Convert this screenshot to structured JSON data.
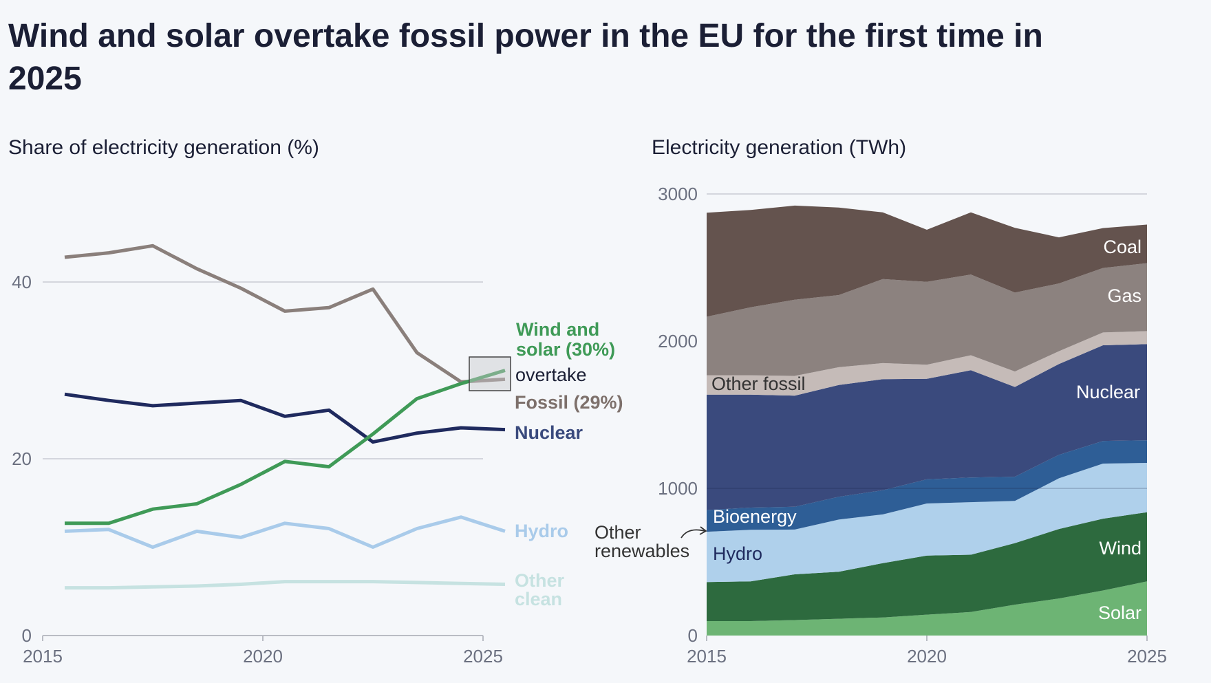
{
  "title_line1": "Wind and solar overtake fossil power in the EU for the first time in",
  "title_line2": "2025",
  "chart_data": [
    {
      "type": "line",
      "title": "Share of electricity generation (%)",
      "x": [
        2015,
        2016,
        2017,
        2018,
        2019,
        2020,
        2021,
        2022,
        2023,
        2024,
        2025
      ],
      "xticks": [
        "2015",
        "2020",
        "2025"
      ],
      "yticks": [
        "0",
        "20",
        "40"
      ],
      "ylim": [
        0,
        45
      ],
      "grid": true,
      "series": [
        {
          "name": "Fossil (29%)",
          "color": "#8a7f7b",
          "values": [
            42.8,
            43.3,
            44.1,
            41.5,
            39.3,
            36.7,
            37.1,
            39.2,
            32.0,
            28.7,
            29.0
          ]
        },
        {
          "name": "Wind and solar (30%)",
          "color": "#3f9a57",
          "values": [
            12.7,
            12.7,
            14.3,
            14.9,
            17.1,
            19.7,
            19.1,
            22.8,
            26.8,
            28.5,
            30.0
          ]
        },
        {
          "name": "Nuclear",
          "color": "#1f2a5e",
          "values": [
            27.3,
            26.6,
            26.0,
            26.3,
            26.6,
            24.8,
            25.5,
            21.9,
            22.9,
            23.5,
            23.3
          ]
        },
        {
          "name": "Hydro",
          "color": "#a9cbea",
          "values": [
            11.8,
            12.0,
            10.0,
            11.8,
            11.1,
            12.7,
            12.1,
            10.0,
            12.1,
            13.4,
            11.8
          ]
        },
        {
          "name": "Other clean",
          "color": "#c6e2e1",
          "values": [
            5.4,
            5.4,
            5.5,
            5.6,
            5.8,
            6.1,
            6.1,
            6.1,
            6.0,
            5.9,
            5.8
          ]
        }
      ],
      "labels": {
        "wind_line1": "Wind and",
        "wind_line2": "solar (30%)",
        "overtake": "overtake",
        "fossil": "Fossil (29%)",
        "nuclear": "Nuclear",
        "hydro": "Hydro",
        "other_line1": "Other",
        "other_line2": "clean"
      }
    },
    {
      "type": "area",
      "stacked": true,
      "title": "Electricity generation (TWh)",
      "x": [
        2015,
        2016,
        2017,
        2018,
        2019,
        2020,
        2021,
        2022,
        2023,
        2024,
        2025
      ],
      "xticks": [
        "2015",
        "2020",
        "2025"
      ],
      "yticks": [
        "0",
        "1000",
        "2000",
        "3000"
      ],
      "ylim": [
        0,
        3000
      ],
      "series": [
        {
          "name": "Solar",
          "color": "#6db474",
          "values": [
            98,
            98,
            105,
            114,
            123,
            142,
            160,
            210,
            252,
            306,
            368
          ]
        },
        {
          "name": "Wind",
          "color": "#2d6a3e",
          "values": [
            265,
            270,
            311,
            319,
            369,
            401,
            389,
            418,
            472,
            488,
            470
          ]
        },
        {
          "name": "Hydro",
          "color": "#afd0eb",
          "values": [
            342,
            350,
            304,
            355,
            331,
            354,
            357,
            287,
            344,
            374,
            335
          ]
        },
        {
          "name": "Bioenergy",
          "color": "#2e5e96",
          "values": [
            148,
            151,
            155,
            155,
            164,
            164,
            168,
            164,
            160,
            154,
            153
          ]
        },
        {
          "name": "Nuclear",
          "color": "#3a4a7d",
          "values": [
            784,
            768,
            755,
            759,
            755,
            683,
            729,
            610,
            617,
            650,
            654
          ]
        },
        {
          "name": "Other fossil",
          "color": "#c5bbb8",
          "values": [
            131,
            131,
            134,
            121,
            109,
            96,
            101,
            105,
            87,
            87,
            88
          ]
        },
        {
          "name": "Gas",
          "color": "#8c827f",
          "values": [
            398,
            462,
            518,
            490,
            571,
            563,
            549,
            536,
            460,
            438,
            462
          ]
        },
        {
          "name": "Coal",
          "color": "#64534e",
          "values": [
            707,
            661,
            639,
            595,
            453,
            354,
            422,
            440,
            313,
            271,
            262
          ]
        }
      ],
      "annotation_line1": "Other",
      "annotation_line2": "renewables"
    }
  ]
}
